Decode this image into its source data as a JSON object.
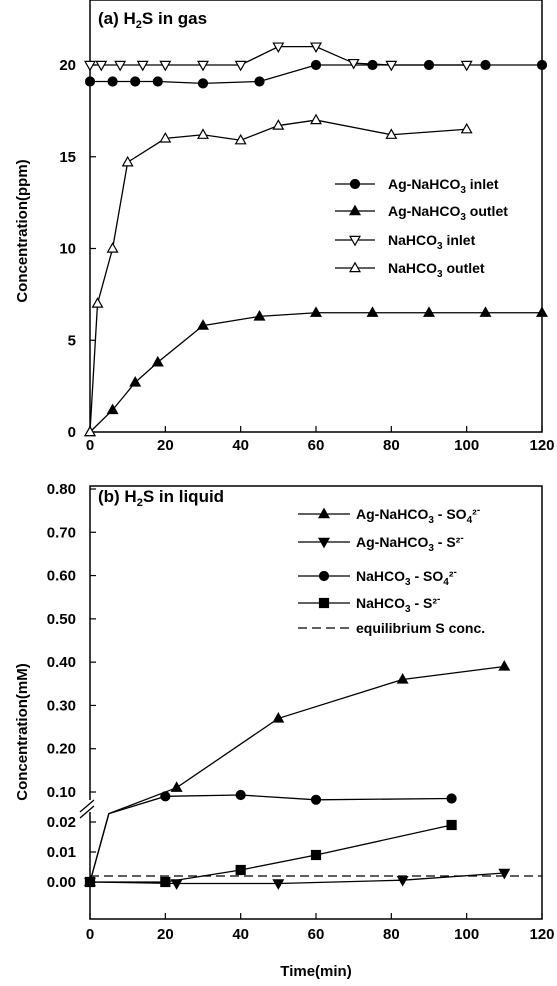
{
  "chart_data": [
    {
      "type": "line",
      "title": "(a) H₂S in gas",
      "ylabel": "Concentration(ppm)",
      "xlabel": "",
      "xlim": [
        0,
        120
      ],
      "ylim": [
        0,
        22
      ],
      "x_ticks": [
        0,
        20,
        40,
        60,
        80,
        100,
        120
      ],
      "y_ticks": [
        0,
        5,
        10,
        15,
        20
      ],
      "legend_position": "right-middle",
      "series": [
        {
          "name": "Ag-NaHCO₃ inlet",
          "marker": "circle",
          "fill": "filled",
          "x": [
            0,
            6,
            12,
            18,
            30,
            45,
            60,
            75,
            90,
            105,
            120
          ],
          "y": [
            19.1,
            19.1,
            19.1,
            19.1,
            19.0,
            19.1,
            20.0,
            20.0,
            20.0,
            20.0,
            20.0
          ]
        },
        {
          "name": "Ag-NaHCO₃ outlet",
          "marker": "triangle-up",
          "fill": "filled",
          "x": [
            0,
            6,
            12,
            18,
            30,
            45,
            60,
            75,
            90,
            105,
            120
          ],
          "y": [
            0.0,
            1.2,
            2.7,
            3.8,
            5.8,
            6.3,
            6.5,
            6.5,
            6.5,
            6.5,
            6.5
          ]
        },
        {
          "name": "NaHCO₃ inlet",
          "marker": "triangle-down",
          "fill": "open",
          "x": [
            0,
            3,
            8,
            14,
            20,
            30,
            40,
            50,
            60,
            70,
            80,
            100
          ],
          "y": [
            20.0,
            20.0,
            20.0,
            20.0,
            20.0,
            20.0,
            20.0,
            21.0,
            21.0,
            20.1,
            20.0,
            20.0
          ]
        },
        {
          "name": "NaHCO₃ outlet",
          "marker": "triangle-up",
          "fill": "open",
          "x": [
            0,
            2,
            6,
            10,
            20,
            30,
            40,
            50,
            60,
            80,
            100
          ],
          "y": [
            0.0,
            7.0,
            10.0,
            14.7,
            16.0,
            16.2,
            15.9,
            16.7,
            17.0,
            16.2,
            16.5
          ]
        }
      ]
    },
    {
      "type": "line",
      "title": "(b) H₂S in liquid",
      "ylabel": "Concentration(mM)",
      "xlabel": "Time(min)",
      "xlim": [
        0,
        120
      ],
      "ylim": [
        0,
        0.8
      ],
      "axis_break": {
        "lower_range": [
          0,
          0.025
        ],
        "upper_range": [
          0.1,
          0.8
        ]
      },
      "x_ticks": [
        0,
        20,
        40,
        60,
        80,
        100,
        120
      ],
      "y_ticks_upper": [
        "0.80",
        "0.70",
        "0.60",
        "0.50",
        "0.40",
        "0.30",
        "0.20",
        "0.10"
      ],
      "y_ticks_lower": [
        "0.02",
        "0.01",
        "0.00"
      ],
      "legend_position": "top-right",
      "series": [
        {
          "name": "Ag-NaHCO₃ - SO₄²⁻",
          "marker": "triangle-up",
          "fill": "filled",
          "x": [
            0,
            5,
            23,
            50,
            83,
            110
          ],
          "y": [
            0.0,
            0.05,
            0.11,
            0.27,
            0.36,
            0.39
          ]
        },
        {
          "name": "Ag-NaHCO₃ - S²⁻",
          "marker": "triangle-down",
          "fill": "filled",
          "x": [
            0,
            23,
            50,
            83,
            110
          ],
          "y": [
            0.0,
            -0.0005,
            -0.0005,
            0.0006,
            0.003
          ]
        },
        {
          "name": "NaHCO₃ - SO₄²⁻",
          "marker": "circle",
          "fill": "filled",
          "x": [
            0,
            5,
            20,
            40,
            60,
            96
          ],
          "y": [
            0.0,
            0.05,
            0.09,
            0.093,
            0.082,
            0.085
          ]
        },
        {
          "name": "NaHCO₃ - S²⁻",
          "marker": "square",
          "fill": "filled",
          "x": [
            0,
            20,
            40,
            60,
            96
          ],
          "y": [
            0.0,
            0.0,
            0.004,
            0.009,
            0.019
          ]
        },
        {
          "name": "equilibrium S conc.",
          "style": "dashed",
          "marker": "none",
          "x": [
            0,
            120
          ],
          "y": [
            0.002,
            0.002
          ]
        }
      ]
    }
  ]
}
